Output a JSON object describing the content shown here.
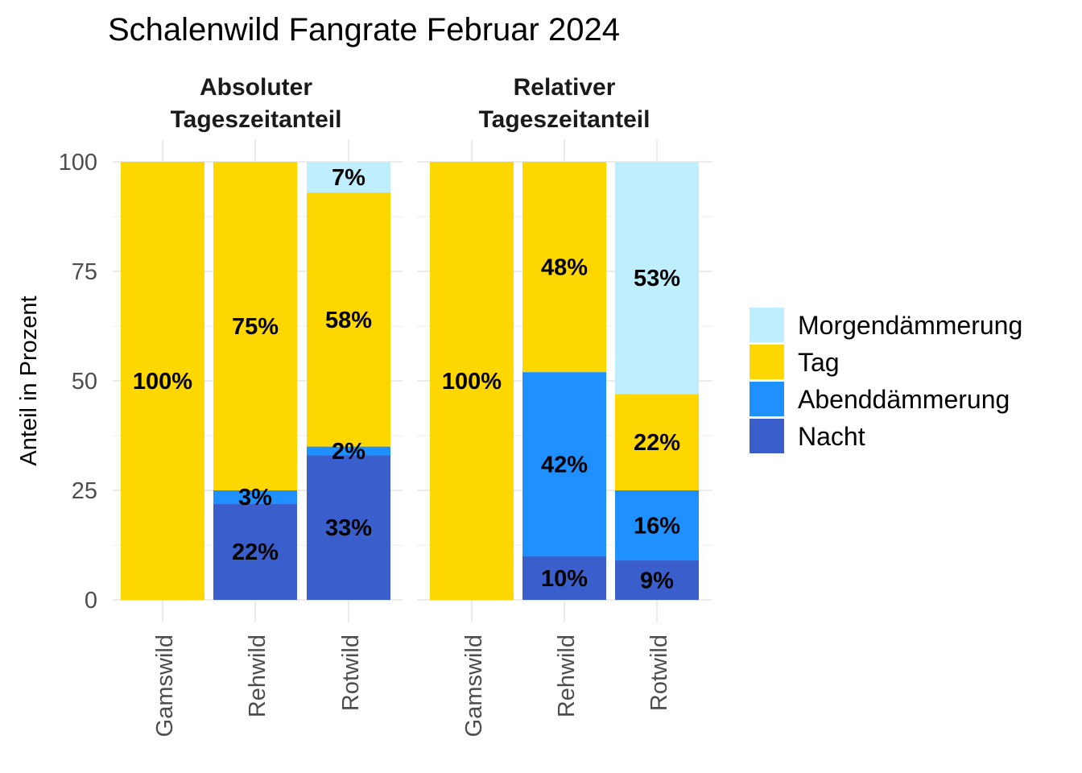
{
  "chart_data": {
    "type": "bar",
    "stacked": true,
    "title": "Schalenwild Fangrate Februar 2024",
    "xlabel": "",
    "ylabel": "Anteil in Prozent",
    "ylim": [
      0,
      100
    ],
    "yticks": [
      "0",
      "25",
      "50",
      "75",
      "100"
    ],
    "grid": true,
    "legend_position": "right",
    "legend": [
      {
        "name": "Morgendämmerung",
        "color": "#BFEFFF"
      },
      {
        "name": "Tag",
        "color": "#FFD700"
      },
      {
        "name": "Abenddämmerung",
        "color": "#1E90FF"
      },
      {
        "name": "Nacht",
        "color": "#3A5FCD"
      }
    ],
    "stack_order_bottom_to_top": [
      "Nacht",
      "Abenddämmerung",
      "Tag",
      "Morgendämmerung"
    ],
    "panels": [
      {
        "title_line1": "Absoluter",
        "title_line2": "Tageszeitanteil",
        "categories": [
          "Gamswild",
          "Rehwild",
          "Rotwild"
        ],
        "bars": [
          {
            "category": "Gamswild",
            "segments": [
              {
                "series": "Tag",
                "value": 100,
                "label": "100%"
              }
            ]
          },
          {
            "category": "Rehwild",
            "segments": [
              {
                "series": "Nacht",
                "value": 22,
                "label": "22%"
              },
              {
                "series": "Abenddämmerung",
                "value": 3,
                "label": "3%"
              },
              {
                "series": "Tag",
                "value": 75,
                "label": "75%"
              }
            ]
          },
          {
            "category": "Rotwild",
            "segments": [
              {
                "series": "Nacht",
                "value": 33,
                "label": "33%"
              },
              {
                "series": "Abenddämmerung",
                "value": 2,
                "label": "2%"
              },
              {
                "series": "Tag",
                "value": 58,
                "label": "58%"
              },
              {
                "series": "Morgendämmerung",
                "value": 7,
                "label": "7%"
              }
            ]
          }
        ]
      },
      {
        "title_line1": "Relativer",
        "title_line2": "Tageszeitanteil",
        "categories": [
          "Gamswild",
          "Rehwild",
          "Rotwild"
        ],
        "bars": [
          {
            "category": "Gamswild",
            "segments": [
              {
                "series": "Tag",
                "value": 100,
                "label": "100%"
              }
            ]
          },
          {
            "category": "Rehwild",
            "segments": [
              {
                "series": "Nacht",
                "value": 10,
                "label": "10%"
              },
              {
                "series": "Abenddämmerung",
                "value": 42,
                "label": "42%"
              },
              {
                "series": "Tag",
                "value": 48,
                "label": "48%"
              }
            ]
          },
          {
            "category": "Rotwild",
            "segments": [
              {
                "series": "Nacht",
                "value": 9,
                "label": "9%"
              },
              {
                "series": "Abenddämmerung",
                "value": 16,
                "label": "16%"
              },
              {
                "series": "Tag",
                "value": 22,
                "label": "22%"
              },
              {
                "series": "Morgendämmerung",
                "value": 53,
                "label": "53%"
              }
            ]
          }
        ]
      }
    ]
  }
}
